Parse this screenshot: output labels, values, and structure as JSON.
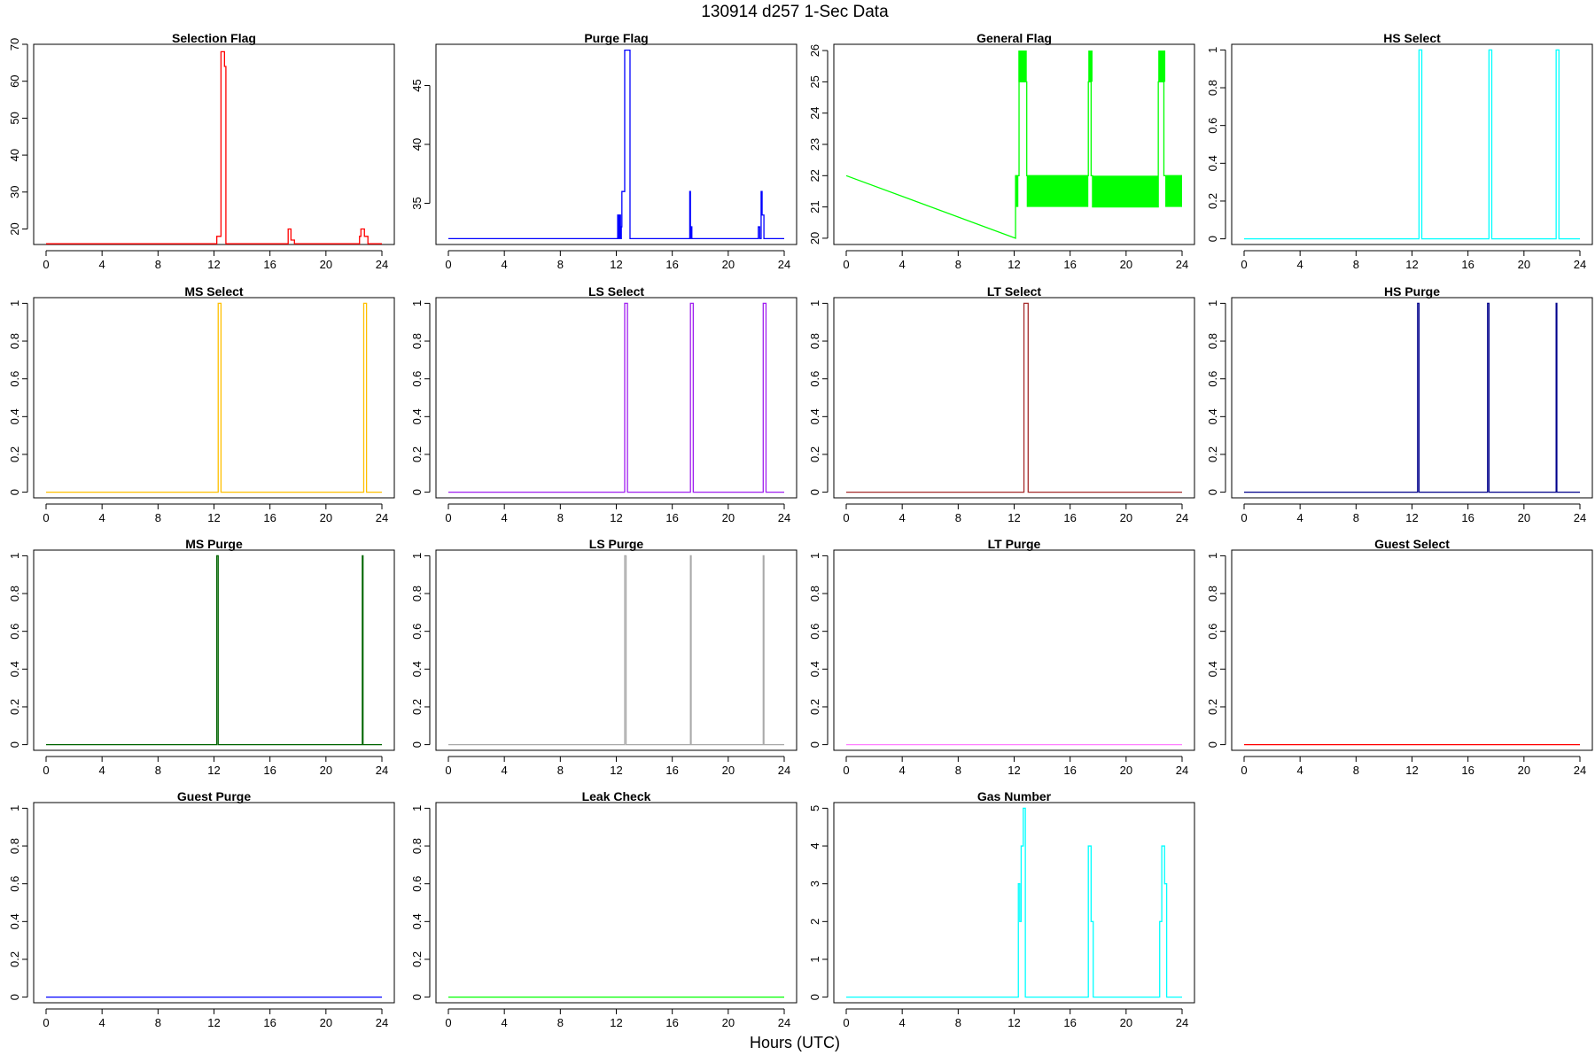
{
  "title": "130914    d257    1-Sec Data",
  "xlabel": "Hours (UTC)",
  "chart_data": [
    {
      "id": "selection-flag",
      "type": "line",
      "title": "Selection Flag",
      "color": "#ff0000",
      "xlim": [
        0,
        24
      ],
      "ylim": [
        15.8,
        70
      ],
      "xticks": [
        0,
        4,
        8,
        12,
        16,
        20,
        24
      ],
      "yticks": [
        20,
        30,
        40,
        50,
        60,
        70
      ],
      "step": true,
      "x": [
        0,
        12.2,
        12.2,
        12.5,
        12.5,
        12.75,
        12.75,
        12.85,
        12.85,
        17.3,
        17.3,
        17.5,
        17.5,
        17.75,
        17.75,
        22.4,
        22.4,
        22.5,
        22.5,
        22.75,
        22.75,
        23,
        23,
        24
      ],
      "y": [
        16,
        16,
        18,
        18,
        68,
        68,
        64,
        64,
        16,
        16,
        20,
        20,
        17,
        17,
        16,
        16,
        18,
        18,
        20,
        20,
        18,
        18,
        16,
        16
      ]
    },
    {
      "id": "purge-flag",
      "type": "line",
      "title": "Purge Flag",
      "color": "#0000ff",
      "xlim": [
        0,
        24
      ],
      "ylim": [
        31.5,
        48.5
      ],
      "xticks": [
        0,
        4,
        8,
        12,
        16,
        20,
        24
      ],
      "yticks": [
        35,
        40,
        45
      ],
      "step": true,
      "x": [
        0,
        12.1,
        12.1,
        12.18,
        12.18,
        12.24,
        12.24,
        12.3,
        12.3,
        12.36,
        12.36,
        12.4,
        12.4,
        12.6,
        12.6,
        12.98,
        12.98,
        17.25,
        17.25,
        17.3,
        17.3,
        17.35,
        17.35,
        17.4,
        17.4,
        22.15,
        22.15,
        22.25,
        22.25,
        22.35,
        22.35,
        22.42,
        22.42,
        22.55,
        22.55,
        24
      ],
      "y": [
        32,
        32,
        34,
        34,
        32,
        32,
        34,
        34,
        32,
        32,
        33,
        33,
        36,
        36,
        48,
        48,
        32,
        32,
        36,
        36,
        32,
        32,
        33,
        33,
        32,
        32,
        33,
        33,
        32,
        32,
        36,
        36,
        34,
        34,
        32,
        32
      ]
    },
    {
      "id": "general-flag",
      "type": "line",
      "title": "General Flag",
      "color": "#00ff00",
      "xlim": [
        0,
        24
      ],
      "ylim": [
        19.8,
        26.2
      ],
      "xticks": [
        0,
        4,
        8,
        12,
        16,
        20,
        24
      ],
      "yticks": [
        20,
        21,
        22,
        23,
        24,
        25,
        26
      ],
      "step": false,
      "x": [
        0,
        12.1,
        12.1,
        12.35,
        12.35,
        12.9,
        12.9,
        17.3,
        17.3,
        17.5,
        17.5,
        17.6,
        17.6,
        22.3,
        22.3,
        22.7,
        22.7,
        24
      ],
      "y": [
        22,
        20,
        22,
        22,
        25,
        25,
        22,
        22,
        25,
        25,
        22,
        22,
        21,
        21,
        25,
        25,
        22,
        22
      ],
      "bands": [
        {
          "x0": 12.1,
          "x1": 12.3,
          "y0": 21,
          "y1": 22
        },
        {
          "x0": 12.3,
          "x1": 12.9,
          "y0": 25,
          "y1": 26
        },
        {
          "x0": 12.9,
          "x1": 17.3,
          "y0": 21,
          "y1": 22
        },
        {
          "x0": 17.3,
          "x1": 17.6,
          "y0": 25,
          "y1": 26
        },
        {
          "x0": 17.6,
          "x1": 22.3,
          "y0": 21,
          "y1": 22
        },
        {
          "x0": 22.3,
          "x1": 22.8,
          "y0": 25,
          "y1": 26
        },
        {
          "x0": 22.8,
          "x1": 24,
          "y0": 21,
          "y1": 22
        }
      ]
    },
    {
      "id": "hs-select",
      "type": "line",
      "title": "HS Select",
      "color": "#00ffff",
      "xlim": [
        0,
        24
      ],
      "ylim": [
        -0.03,
        1.03
      ],
      "xticks": [
        0,
        4,
        8,
        12,
        16,
        20,
        24
      ],
      "yticks": [
        0,
        0.2,
        0.4,
        0.6,
        0.8,
        1
      ],
      "step": true,
      "x": [
        0,
        12.5,
        12.5,
        12.7,
        12.7,
        17.5,
        17.5,
        17.7,
        17.7,
        22.3,
        22.3,
        22.5,
        22.5,
        24
      ],
      "y": [
        0,
        0,
        1,
        1,
        0,
        0,
        1,
        1,
        0,
        0,
        1,
        1,
        0,
        0
      ]
    },
    {
      "id": "ms-select",
      "type": "line",
      "title": "MS Select",
      "color": "#ffc000",
      "xlim": [
        0,
        24
      ],
      "ylim": [
        -0.03,
        1.03
      ],
      "xticks": [
        0,
        4,
        8,
        12,
        16,
        20,
        24
      ],
      "yticks": [
        0,
        0.2,
        0.4,
        0.6,
        0.8,
        1
      ],
      "step": true,
      "x": [
        0,
        12.3,
        12.3,
        12.5,
        12.5,
        22.7,
        22.7,
        22.9,
        22.9,
        24
      ],
      "y": [
        0,
        0,
        1,
        1,
        0,
        0,
        1,
        1,
        0,
        0
      ]
    },
    {
      "id": "ls-select",
      "type": "line",
      "title": "LS Select",
      "color": "#a020f0",
      "xlim": [
        0,
        24
      ],
      "ylim": [
        -0.03,
        1.03
      ],
      "xticks": [
        0,
        4,
        8,
        12,
        16,
        20,
        24
      ],
      "yticks": [
        0,
        0.2,
        0.4,
        0.6,
        0.8,
        1
      ],
      "step": true,
      "x": [
        0,
        12.6,
        12.6,
        12.8,
        12.8,
        17.3,
        17.3,
        17.5,
        17.5,
        22.5,
        22.5,
        22.7,
        22.7,
        24
      ],
      "y": [
        0,
        0,
        1,
        1,
        0,
        0,
        1,
        1,
        0,
        0,
        1,
        1,
        0,
        0
      ]
    },
    {
      "id": "lt-select",
      "type": "line",
      "title": "LT Select",
      "color": "#a52a2a",
      "xlim": [
        0,
        24
      ],
      "ylim": [
        -0.03,
        1.03
      ],
      "xticks": [
        0,
        4,
        8,
        12,
        16,
        20,
        24
      ],
      "yticks": [
        0,
        0.2,
        0.4,
        0.6,
        0.8,
        1
      ],
      "step": true,
      "x": [
        0,
        12.7,
        12.7,
        13.0,
        13.0,
        24
      ],
      "y": [
        0,
        0,
        1,
        1,
        0,
        0
      ]
    },
    {
      "id": "hs-purge",
      "type": "line",
      "title": "HS Purge",
      "color": "#00008b",
      "xlim": [
        0,
        24
      ],
      "ylim": [
        -0.03,
        1.03
      ],
      "xticks": [
        0,
        4,
        8,
        12,
        16,
        20,
        24
      ],
      "yticks": [
        0,
        0.2,
        0.4,
        0.6,
        0.8,
        1
      ],
      "step": true,
      "x": [
        0,
        12.4,
        12.4,
        12.5,
        12.5,
        17.4,
        17.4,
        17.5,
        17.5,
        22.3,
        22.3,
        22.35,
        22.35,
        24
      ],
      "y": [
        0,
        0,
        1,
        1,
        0,
        0,
        1,
        1,
        0,
        0,
        1,
        1,
        0,
        0
      ]
    },
    {
      "id": "ms-purge",
      "type": "line",
      "title": "MS Purge",
      "color": "#006400",
      "xlim": [
        0,
        24
      ],
      "ylim": [
        -0.03,
        1.03
      ],
      "xticks": [
        0,
        4,
        8,
        12,
        16,
        20,
        24
      ],
      "yticks": [
        0,
        0.2,
        0.4,
        0.6,
        0.8,
        1
      ],
      "step": true,
      "x": [
        0,
        12.2,
        12.2,
        12.3,
        12.3,
        22.6,
        22.6,
        22.65,
        22.65,
        24
      ],
      "y": [
        0,
        0,
        1,
        1,
        0,
        0,
        1,
        1,
        0,
        0
      ]
    },
    {
      "id": "ls-purge",
      "type": "line",
      "title": "LS Purge",
      "color": "#a9a9a9",
      "xlim": [
        0,
        24
      ],
      "ylim": [
        -0.03,
        1.03
      ],
      "xticks": [
        0,
        4,
        8,
        12,
        16,
        20,
        24
      ],
      "yticks": [
        0,
        0.2,
        0.4,
        0.6,
        0.8,
        1
      ],
      "step": true,
      "x": [
        0,
        12.6,
        12.6,
        12.7,
        12.7,
        17.3,
        17.3,
        17.35,
        17.35,
        22.5,
        22.5,
        22.55,
        22.55,
        24
      ],
      "y": [
        0,
        0,
        1,
        1,
        0,
        0,
        1,
        1,
        0,
        0,
        1,
        1,
        0,
        0
      ]
    },
    {
      "id": "lt-purge",
      "type": "line",
      "title": "LT Purge",
      "color": "#ff80ff",
      "xlim": [
        0,
        24
      ],
      "ylim": [
        -0.03,
        1.03
      ],
      "xticks": [
        0,
        4,
        8,
        12,
        16,
        20,
        24
      ],
      "yticks": [
        0,
        0.2,
        0.4,
        0.6,
        0.8,
        1
      ],
      "step": true,
      "x": [
        0,
        24
      ],
      "y": [
        0,
        0
      ]
    },
    {
      "id": "guest-select",
      "type": "line",
      "title": "Guest Select",
      "color": "#ff0000",
      "xlim": [
        0,
        24
      ],
      "ylim": [
        -0.03,
        1.03
      ],
      "xticks": [
        0,
        4,
        8,
        12,
        16,
        20,
        24
      ],
      "yticks": [
        0,
        0.2,
        0.4,
        0.6,
        0.8,
        1
      ],
      "step": true,
      "x": [
        0,
        24
      ],
      "y": [
        0,
        0
      ]
    },
    {
      "id": "guest-purge",
      "type": "line",
      "title": "Guest Purge",
      "color": "#0000ff",
      "xlim": [
        0,
        24
      ],
      "ylim": [
        -0.03,
        1.03
      ],
      "xticks": [
        0,
        4,
        8,
        12,
        16,
        20,
        24
      ],
      "yticks": [
        0,
        0.2,
        0.4,
        0.6,
        0.8,
        1
      ],
      "step": true,
      "x": [
        0,
        24
      ],
      "y": [
        0,
        0
      ]
    },
    {
      "id": "leak-check",
      "type": "line",
      "title": "Leak Check",
      "color": "#00ff00",
      "xlim": [
        0,
        24
      ],
      "ylim": [
        -0.03,
        1.03
      ],
      "xticks": [
        0,
        4,
        8,
        12,
        16,
        20,
        24
      ],
      "yticks": [
        0,
        0.2,
        0.4,
        0.6,
        0.8,
        1
      ],
      "step": true,
      "x": [
        0,
        24
      ],
      "y": [
        0,
        0
      ]
    },
    {
      "id": "gas-number",
      "type": "line",
      "title": "Gas Number",
      "color": "#00ffff",
      "xlim": [
        0,
        24
      ],
      "ylim": [
        -0.15,
        5.15
      ],
      "xticks": [
        0,
        4,
        8,
        12,
        16,
        20,
        24
      ],
      "yticks": [
        0,
        1,
        2,
        3,
        4,
        5
      ],
      "step": true,
      "x": [
        0,
        12.3,
        12.3,
        12.4,
        12.4,
        12.5,
        12.5,
        12.65,
        12.65,
        12.8,
        12.8,
        13.1,
        13.1,
        17.3,
        17.3,
        17.5,
        17.5,
        17.65,
        17.65,
        22.4,
        22.4,
        22.55,
        22.55,
        22.75,
        22.75,
        22.9,
        22.9,
        24
      ],
      "y": [
        0,
        0,
        3,
        3,
        2,
        2,
        4,
        4,
        5,
        5,
        0,
        0,
        0,
        0,
        4,
        4,
        2,
        2,
        0,
        0,
        2,
        2,
        4,
        4,
        3,
        3,
        0,
        0
      ]
    }
  ]
}
